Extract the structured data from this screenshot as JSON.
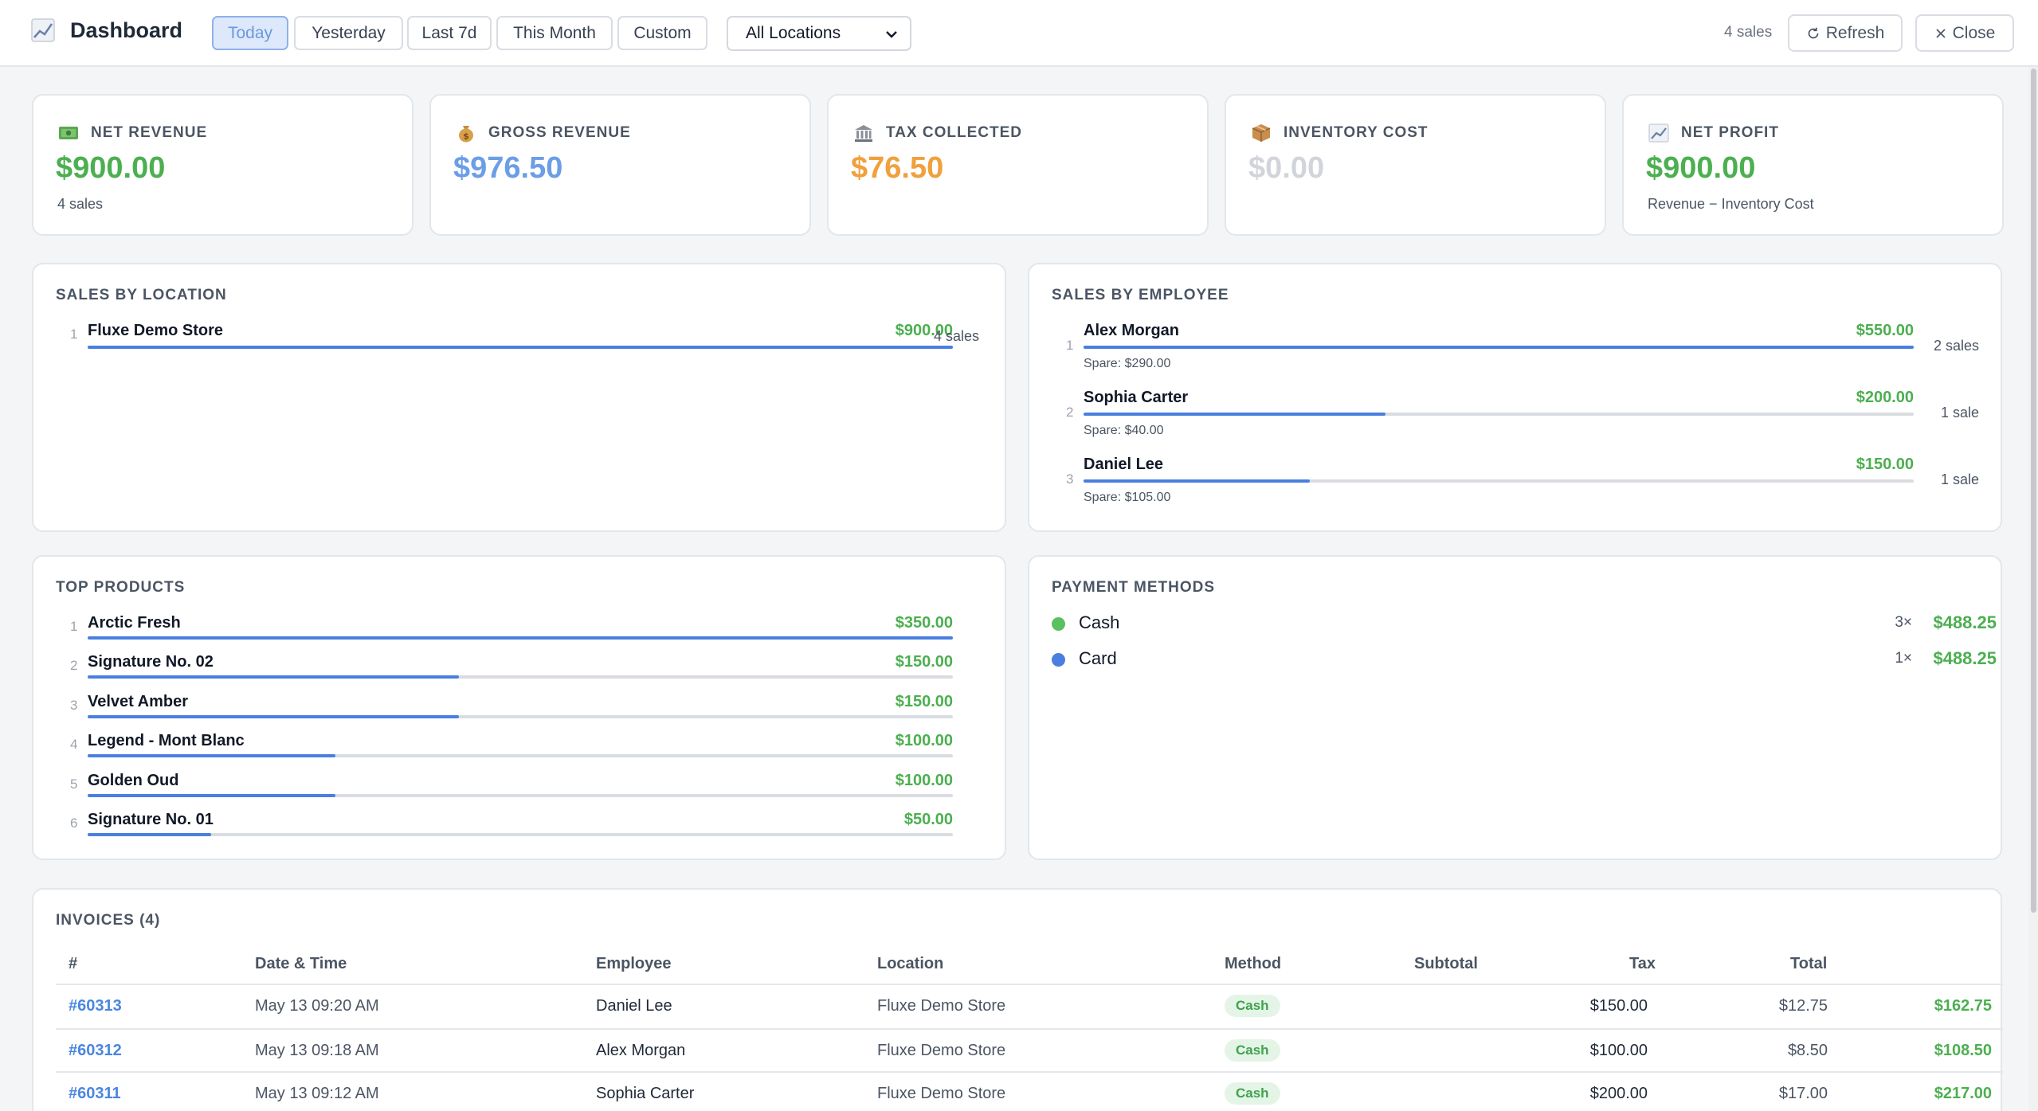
{
  "header": {
    "title": "Dashboard",
    "icon": "chart-increasing-icon",
    "ranges": [
      "Today",
      "Yesterday",
      "Last 7d",
      "This Month",
      "Custom"
    ],
    "active_range": "Today",
    "location_select": "All Locations",
    "sales_count": "4 sales",
    "refresh_label": "Refresh",
    "close_label": "Close"
  },
  "kpis": [
    {
      "label": "NET REVENUE",
      "value": "$900.00",
      "sub": "4 sales",
      "color": "#4caf50",
      "icon": "money-icon"
    },
    {
      "label": "GROSS REVENUE",
      "value": "$976.50",
      "sub": "",
      "color": "#6b9ee6",
      "icon": "money-bag-icon"
    },
    {
      "label": "TAX COLLECTED",
      "value": "$76.50",
      "sub": "",
      "color": "#f0a03c",
      "icon": "bank-icon"
    },
    {
      "label": "INVENTORY COST",
      "value": "$0.00",
      "sub": "",
      "color": "#d1d5db",
      "icon": "package-icon"
    },
    {
      "label": "NET PROFIT",
      "value": "$900.00",
      "sub": "Revenue − Inventory Cost",
      "color": "#4caf50",
      "icon": "chart-increasing-icon"
    }
  ],
  "sales_by_location": {
    "title": "SALES BY LOCATION",
    "items": [
      {
        "rank": "1",
        "name": "Fluxe Demo Store",
        "amount": "$900.00",
        "count": "4 sales",
        "share": 1.0
      }
    ]
  },
  "sales_by_employee": {
    "title": "SALES BY EMPLOYEE",
    "items": [
      {
        "rank": "1",
        "name": "Alex Morgan",
        "amount": "$550.00",
        "count": "2 sales",
        "spare": "Spare: $290.00",
        "share": 1.0
      },
      {
        "rank": "2",
        "name": "Sophia Carter",
        "amount": "$200.00",
        "count": "1 sale",
        "spare": "Spare: $40.00",
        "share": 0.364
      },
      {
        "rank": "3",
        "name": "Daniel Lee",
        "amount": "$150.00",
        "count": "1 sale",
        "spare": "Spare: $105.00",
        "share": 0.273
      }
    ]
  },
  "top_products": {
    "title": "TOP PRODUCTS",
    "items": [
      {
        "rank": "1",
        "name": "Arctic Fresh",
        "amount": "$350.00",
        "share": 1.0
      },
      {
        "rank": "2",
        "name": "Signature No. 02",
        "amount": "$150.00",
        "share": 0.429
      },
      {
        "rank": "3",
        "name": "Velvet Amber",
        "amount": "$150.00",
        "share": 0.429
      },
      {
        "rank": "4",
        "name": "Legend - Mont Blanc",
        "amount": "$100.00",
        "share": 0.286
      },
      {
        "rank": "5",
        "name": "Golden Oud",
        "amount": "$100.00",
        "share": 0.286
      },
      {
        "rank": "6",
        "name": "Signature No. 01",
        "amount": "$50.00",
        "share": 0.143
      }
    ]
  },
  "payment_methods": {
    "title": "PAYMENT METHODS",
    "items": [
      {
        "name": "Cash",
        "count": "3×",
        "amount": "$488.25",
        "color": "#5cbf61"
      },
      {
        "name": "Card",
        "count": "1×",
        "amount": "$488.25",
        "color": "#4a7fe0"
      }
    ]
  },
  "invoices": {
    "title": "INVOICES (4)",
    "columns": [
      "#",
      "Date & Time",
      "Employee",
      "Location",
      "Method",
      "Subtotal",
      "Tax",
      "Total"
    ],
    "rows": [
      {
        "id": "#60313",
        "datetime": "May 13 09:20 AM",
        "employee": "Daniel Lee",
        "location": "Fluxe Demo Store",
        "method": "Cash",
        "subtotal": "$150.00",
        "tax": "$12.75",
        "total": "$162.75"
      },
      {
        "id": "#60312",
        "datetime": "May 13 09:18 AM",
        "employee": "Alex Morgan",
        "location": "Fluxe Demo Store",
        "method": "Cash",
        "subtotal": "$100.00",
        "tax": "$8.50",
        "total": "$108.50"
      },
      {
        "id": "#60311",
        "datetime": "May 13 09:12 AM",
        "employee": "Sophia Carter",
        "location": "Fluxe Demo Store",
        "method": "Cash",
        "subtotal": "$200.00",
        "tax": "$17.00",
        "total": "$217.00"
      }
    ]
  }
}
